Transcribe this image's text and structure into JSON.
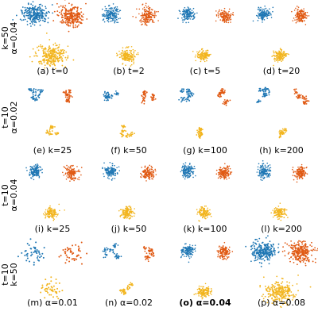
{
  "colors": {
    "blue": "#1f77b4",
    "orange": "#e05a14",
    "yellow": "#f2b51f"
  },
  "rows": [
    {
      "label_lines": [
        "k=50",
        "α=0.04"
      ],
      "panels": [
        {
          "caption": "(a) t=0",
          "style": "big",
          "bold": false
        },
        {
          "caption": "(b) t=2",
          "style": "medium",
          "bold": false
        },
        {
          "caption": "(c) t=5",
          "style": "small",
          "bold": false
        },
        {
          "caption": "(d) t=20",
          "style": "small",
          "bold": false
        }
      ]
    },
    {
      "label_lines": [
        "t=10",
        "α=0.02"
      ],
      "panels": [
        {
          "caption": "(e) k=25",
          "style": "cluster",
          "bold": false
        },
        {
          "caption": "(f) k=50",
          "style": "cluster",
          "bold": false
        },
        {
          "caption": "(g) k=100",
          "style": "cluster",
          "bold": false
        },
        {
          "caption": "(h) k=200",
          "style": "cluster",
          "bold": false
        }
      ]
    },
    {
      "label_lines": [
        "t=10",
        "α=0.04"
      ],
      "panels": [
        {
          "caption": "(i) k=25",
          "style": "small",
          "bold": false
        },
        {
          "caption": "(j) k=50",
          "style": "small",
          "bold": false
        },
        {
          "caption": "(k) k=100",
          "style": "small",
          "bold": false
        },
        {
          "caption": "(l) k=200",
          "style": "small",
          "bold": false
        }
      ]
    },
    {
      "label_lines": [
        "t=10",
        "k=50"
      ],
      "panels": [
        {
          "caption": "(m) α=0.01",
          "style": "sparse",
          "bold": false
        },
        {
          "caption": "(n) α=0.02",
          "style": "cluster",
          "bold": false
        },
        {
          "caption": "(o) α=0.04",
          "style": "small",
          "bold": true
        },
        {
          "caption": "(p) α=0.08",
          "style": "big",
          "bold": false
        }
      ]
    }
  ]
}
